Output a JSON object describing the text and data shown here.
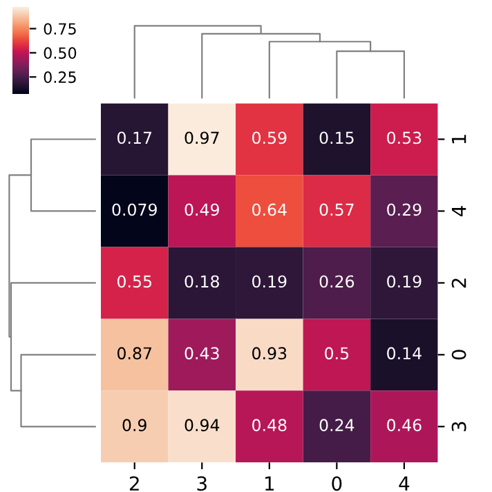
{
  "chart_data": {
    "type": "heatmap",
    "categories": [
      "2",
      "3",
      "1",
      "0",
      "4"
    ],
    "y_categories": [
      "1",
      "4",
      "2",
      "0",
      "3"
    ],
    "cells": [
      [
        0.17,
        0.97,
        0.59,
        0.15,
        0.53
      ],
      [
        0.079,
        0.49,
        0.64,
        0.57,
        0.29
      ],
      [
        0.55,
        0.18,
        0.19,
        0.26,
        0.19
      ],
      [
        0.87,
        0.43,
        0.93,
        0.5,
        0.14
      ],
      [
        0.9,
        0.94,
        0.48,
        0.24,
        0.46
      ]
    ],
    "data_labels": true,
    "clim": [
      0.079,
      0.97
    ],
    "cticks": [
      {
        "value": 0.25,
        "label": "0.25"
      },
      {
        "value": 0.5,
        "label": "0.50"
      },
      {
        "value": 0.75,
        "label": "0.75"
      }
    ]
  }
}
